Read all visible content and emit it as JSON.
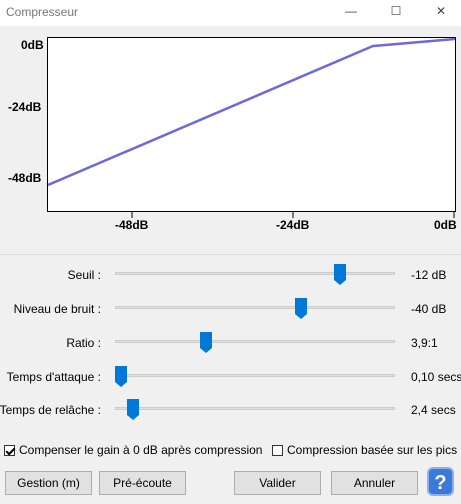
{
  "window": {
    "title": "Compresseur",
    "controls": {
      "minimize": "—",
      "maximize": "☐",
      "close": "✕"
    }
  },
  "graph": {
    "y_ticks": [
      "0dB",
      "-24dB",
      "-48dB"
    ],
    "x_ticks": [
      "-48dB",
      "-24dB",
      "0dB"
    ],
    "line_color": "#6a6adc"
  },
  "sliders": [
    {
      "label": "Seuil :",
      "value": "-12 dB",
      "position": 0.8
    },
    {
      "label": "Niveau de bruit :",
      "value": "-40 dB",
      "position": 0.66
    },
    {
      "label": "Ratio :",
      "value": "3,9:1",
      "position": 0.32
    },
    {
      "label": "Temps d'attaque :",
      "value": "0,10 secs",
      "position": 0.0
    },
    {
      "label": "Temps de relâche :",
      "value": "2,4 secs",
      "position": 0.06
    }
  ],
  "options": {
    "makeup_gain": {
      "label": "Compenser le gain à 0 dB après compression",
      "checked": true
    },
    "peak_based": {
      "label": "Compression basée sur les pics",
      "checked": false
    }
  },
  "buttons": {
    "manage": "Gestion (m)",
    "preview": "Pré-écoute",
    "ok": "Valider",
    "cancel": "Annuler",
    "help": "?"
  },
  "colors": {
    "slider_thumb": "#0078d7",
    "help_button": "#3d79d9"
  }
}
